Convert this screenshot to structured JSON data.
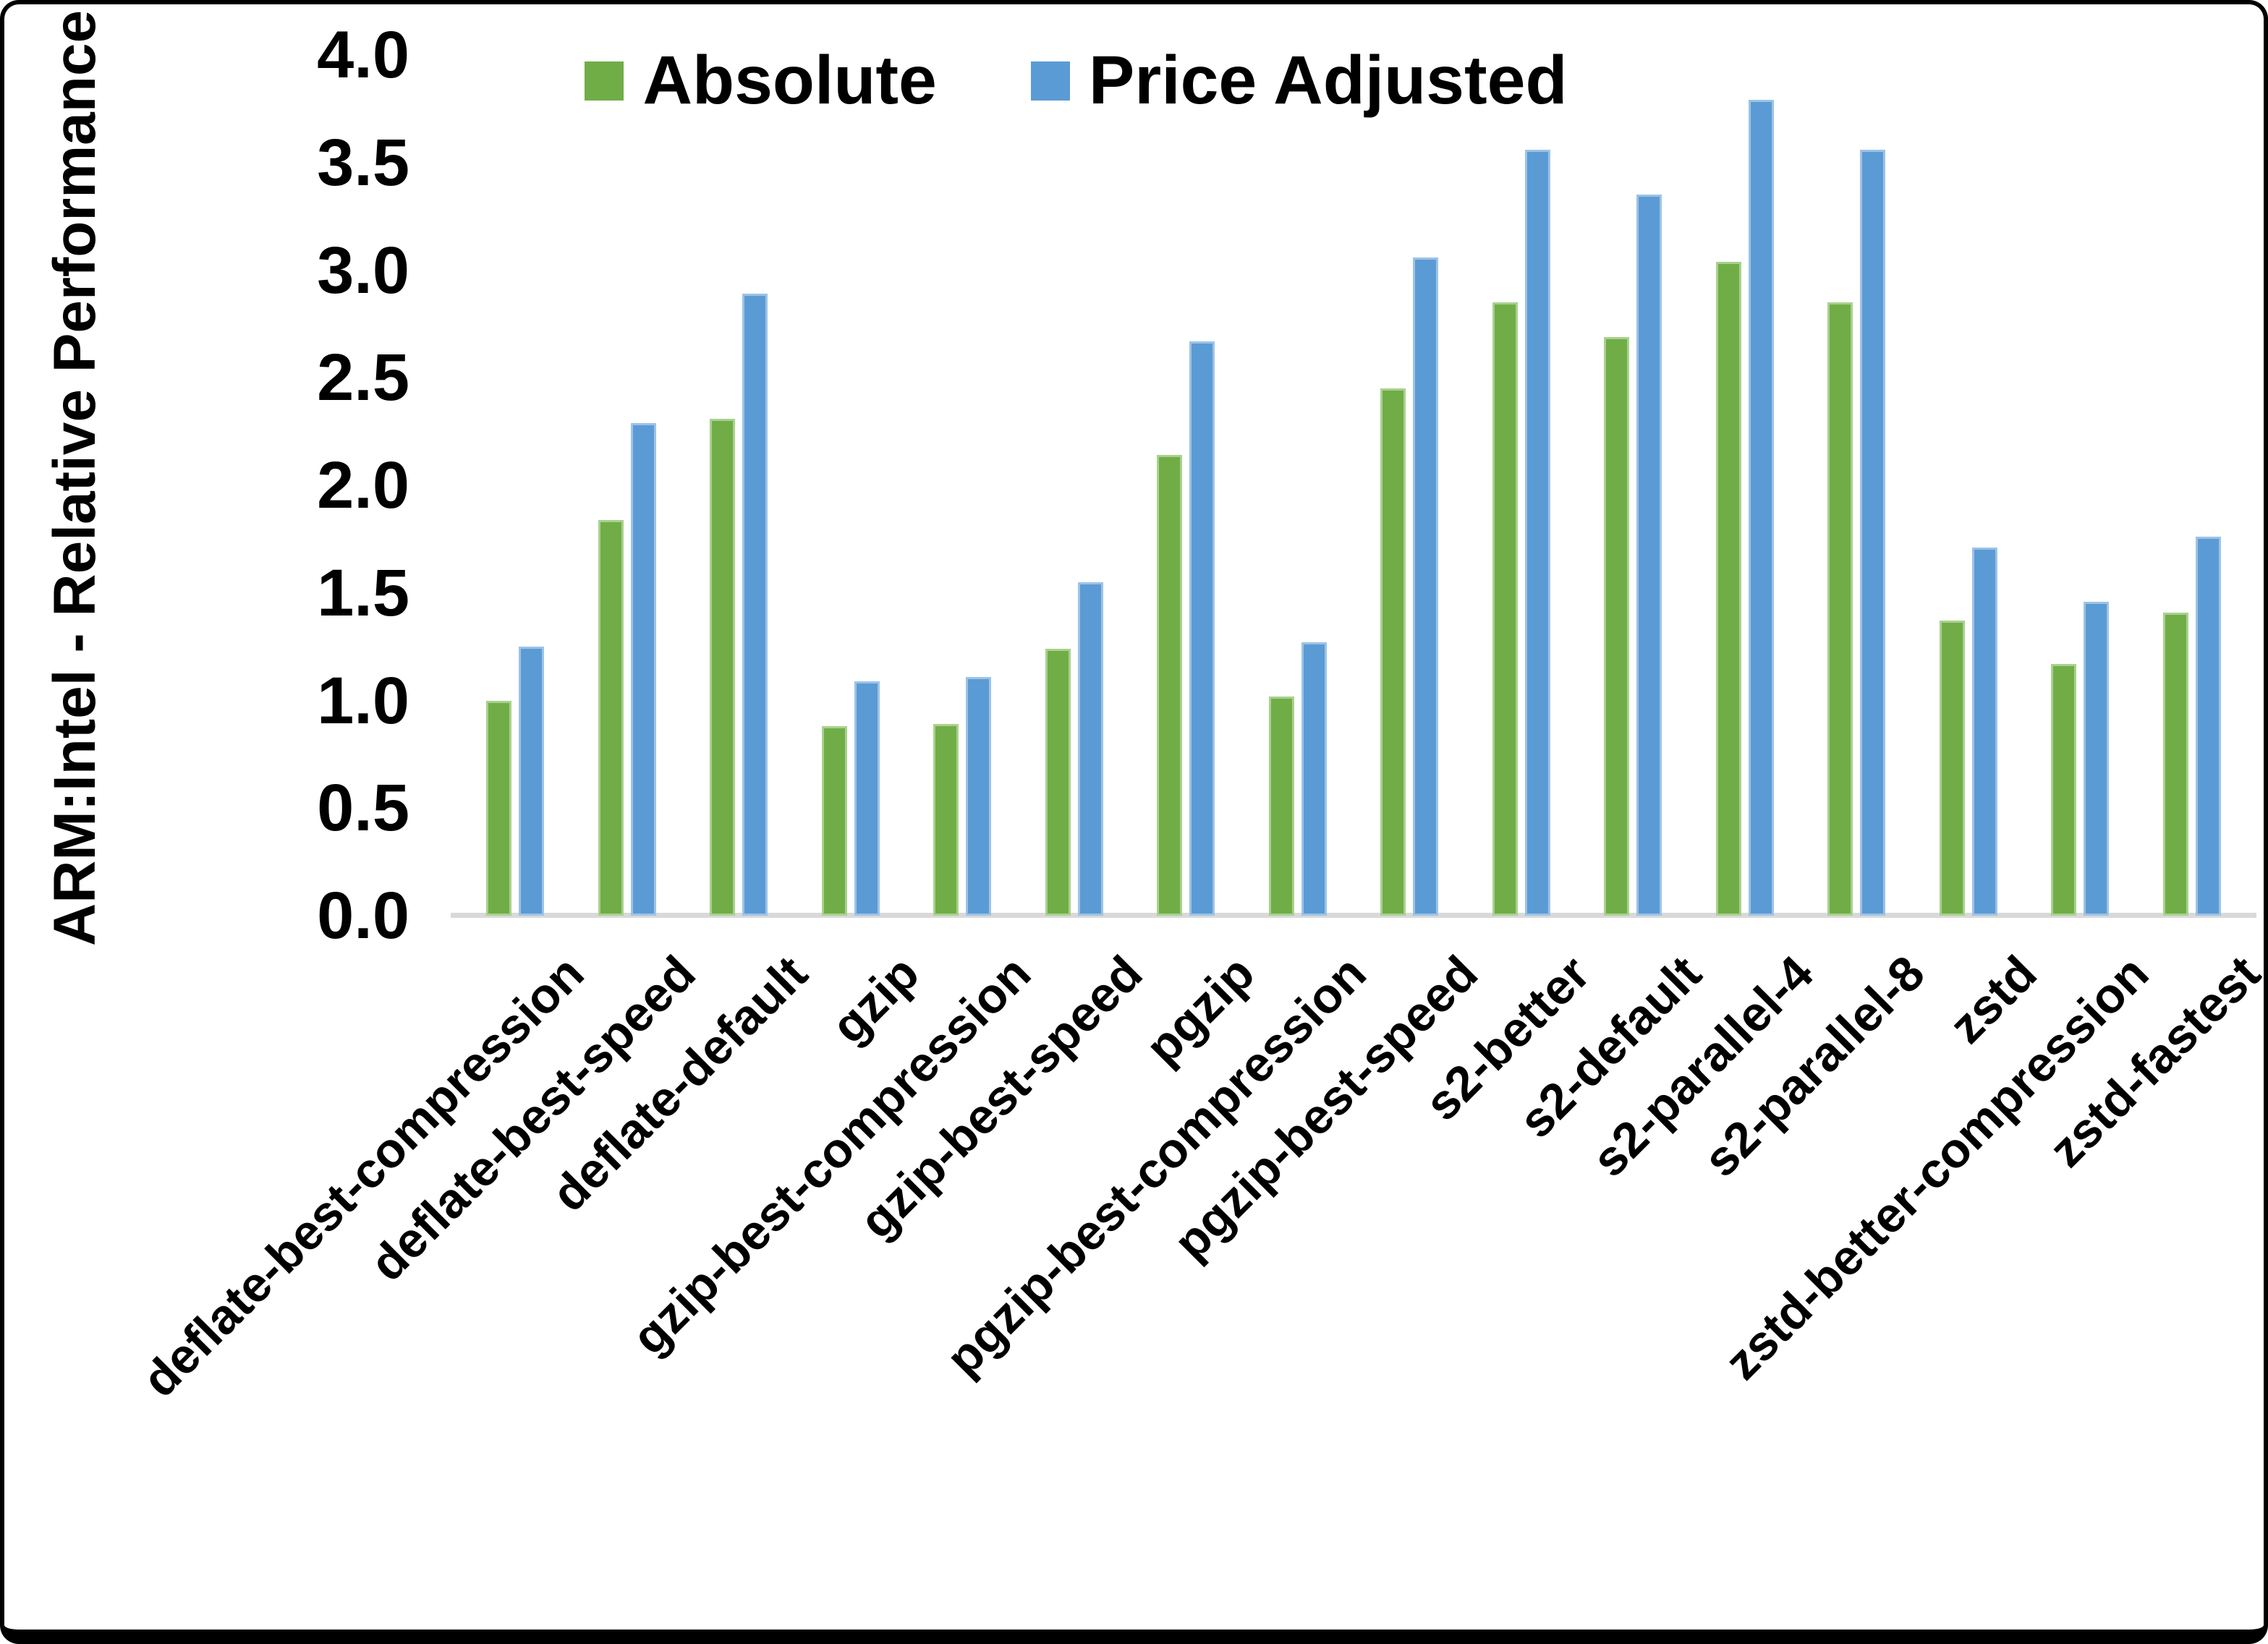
{
  "chart_data": {
    "type": "bar",
    "title": "",
    "xlabel": "",
    "ylabel": "ARM:Intel - Relative Performance",
    "ylim": [
      0.0,
      4.0
    ],
    "ytick_step": 0.5,
    "yticks": [
      "0.0",
      "0.5",
      "1.0",
      "1.5",
      "2.0",
      "2.5",
      "3.0",
      "3.5",
      "4.0"
    ],
    "grid": false,
    "legend_position": "top-center",
    "background_color": "#ffffff",
    "axis_line_color": "#d9d9d9",
    "categories": [
      "deflate-best-compression",
      "deflate-best-speed",
      "deflate-default",
      "gzip",
      "gzip-best-compression",
      "gzip-best-speed",
      "pgzip",
      "pgzip-best-compression",
      "pgzip-best-speed",
      "s2-better",
      "s2-default",
      "s2-parallel-4",
      "s2-parallel-8",
      "zstd",
      "zstd-better-compression",
      "zstd-fastest"
    ],
    "series": [
      {
        "name": "Absolute",
        "color": "#70AD47",
        "edge_color": "#A9D18E",
        "values": [
          1.0,
          1.84,
          2.31,
          0.88,
          0.89,
          1.24,
          2.14,
          1.02,
          2.45,
          2.85,
          2.69,
          3.04,
          2.85,
          1.37,
          1.17,
          1.41
        ]
      },
      {
        "name": "Price Adjusted",
        "color": "#5B9BD5",
        "edge_color": "#9DC3E6",
        "values": [
          1.25,
          2.29,
          2.89,
          1.09,
          1.11,
          1.55,
          2.67,
          1.27,
          3.06,
          3.56,
          3.35,
          3.79,
          3.56,
          1.71,
          1.46,
          1.76
        ]
      }
    ]
  }
}
